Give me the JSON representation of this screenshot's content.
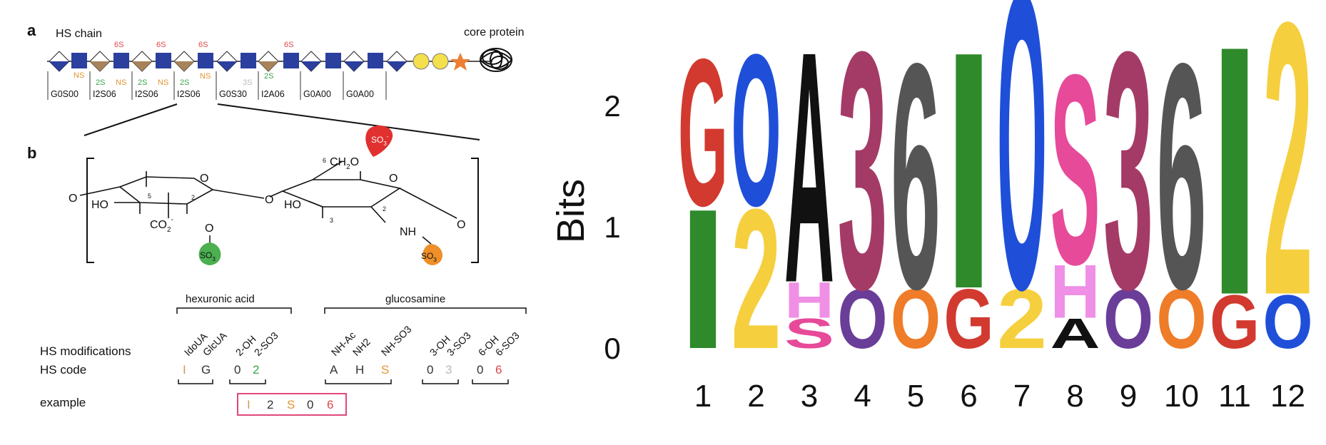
{
  "panel_a": {
    "label": "a",
    "chain_label": "HS chain",
    "core_label": "core protein",
    "top_marks": [
      "6S",
      "6S",
      "6S",
      "6S"
    ],
    "bottom_marks": [
      {
        "text": "NS",
        "color": "#e3952f"
      },
      {
        "text": "2S",
        "color": "#3aa54a"
      },
      {
        "text": "NS",
        "color": "#e3952f"
      },
      {
        "text": "2S",
        "color": "#3aa54a"
      },
      {
        "text": "NS",
        "color": "#e3952f"
      },
      {
        "text": "2S",
        "color": "#3aa54a"
      },
      {
        "text": "NS",
        "color": "#e3952f"
      },
      {
        "text": "3S",
        "color": "#b9b9b9"
      },
      {
        "text": "2S",
        "color": "#3aa54a"
      }
    ],
    "codes": [
      "G0S00",
      "I2S06",
      "I2S06",
      "I2S06",
      "G0S30",
      "I2A06",
      "G0A00",
      "G0A00"
    ]
  },
  "panel_b": {
    "label": "b",
    "atoms": {
      "o_link_left": "O",
      "o_ring1": "O",
      "o_glyco": "O",
      "o_ring2": "O",
      "o_link_right": "O",
      "ho1": "HO",
      "ho2": "HO",
      "co2": "CO",
      "co2_sup": "-",
      "co2_sub": "2",
      "o_2": "O",
      "ch2o": "CH",
      "ch2o_sub": "2",
      "ch2o_o": "O",
      "nh": "NH",
      "num_5": "5",
      "num_2a": "2",
      "num_6": "6",
      "num_3": "3",
      "num_2b": "2",
      "so3": "SO",
      "so3_sub": "3",
      "so3_sup": "-"
    },
    "group_hexuronic": "hexuronic acid",
    "group_glucosamine": "glucosamine",
    "row_modifications": "HS modifications",
    "row_code": "HS code",
    "row_example": "example",
    "modifications": [
      "IdoUA",
      "GlcUA",
      "2-OH",
      "2-SO3",
      "NH-Ac",
      "NH2",
      "NH-SO3",
      "3-OH",
      "3-SO3",
      "6-OH",
      "6-SO3"
    ],
    "codes": [
      {
        "text": "I",
        "color": "#c99a5b"
      },
      {
        "text": "G",
        "color": "#333333"
      },
      {
        "text": "0",
        "color": "#333333"
      },
      {
        "text": "2",
        "color": "#3aa54a"
      },
      {
        "text": "A",
        "color": "#333333"
      },
      {
        "text": "H",
        "color": "#333333"
      },
      {
        "text": "S",
        "color": "#e3952f"
      },
      {
        "text": "0",
        "color": "#333333"
      },
      {
        "text": "3",
        "color": "#b9b9b9"
      },
      {
        "text": "0",
        "color": "#333333"
      },
      {
        "text": "6",
        "color": "#e0484a"
      }
    ],
    "example": [
      {
        "text": "I",
        "color": "#c99a5b"
      },
      {
        "text": "2",
        "color": "#333333"
      },
      {
        "text": "S",
        "color": "#e3952f"
      },
      {
        "text": "0",
        "color": "#333333"
      },
      {
        "text": "6",
        "color": "#e0484a"
      }
    ],
    "example_border": "#e0487a"
  },
  "logo": {
    "ylabel": "Bits",
    "yticks": [
      "2",
      "1",
      "0"
    ],
    "ytick_values": [
      2,
      1,
      0
    ],
    "positions": [
      "1",
      "2",
      "3",
      "4",
      "5",
      "6",
      "7",
      "8",
      "9",
      "10",
      "11",
      "12"
    ],
    "columns": [
      [
        {
          "l": "I",
          "bits": 1.18,
          "c": "#2e8a2a"
        },
        {
          "l": "G",
          "bits": 1.24,
          "c": "#d23a2f"
        }
      ],
      [
        {
          "l": "2",
          "bits": 1.18,
          "c": "#f6cf3e"
        },
        {
          "l": "O",
          "bits": 1.28,
          "c": "#1f4fd9"
        }
      ],
      [
        {
          "l": "S",
          "bits": 0.25,
          "c": "#e64a99"
        },
        {
          "l": "H",
          "bits": 0.3,
          "c": "#ef8fe5"
        },
        {
          "l": "A",
          "bits": 1.95,
          "c": "#111111"
        }
      ],
      [
        {
          "l": "O",
          "bits": 0.5,
          "c": "#6a3d99"
        },
        {
          "l": "3",
          "bits": 2.0,
          "c": "#a43b66"
        }
      ],
      [
        {
          "l": "O",
          "bits": 0.5,
          "c": "#ef7c28"
        },
        {
          "l": "6",
          "bits": 1.9,
          "c": "#555555"
        }
      ],
      [
        {
          "l": "G",
          "bits": 0.5,
          "c": "#d23a2f"
        },
        {
          "l": "I",
          "bits": 2.0,
          "c": "#2e8a2a"
        }
      ],
      [
        {
          "l": "2",
          "bits": 0.5,
          "c": "#f6cf3e"
        },
        {
          "l": "O",
          "bits": 2.5,
          "c": "#1f4fd9"
        }
      ],
      [
        {
          "l": "A",
          "bits": 0.25,
          "c": "#111111"
        },
        {
          "l": "H",
          "bits": 0.45,
          "c": "#ef8fe5"
        },
        {
          "l": "S",
          "bits": 1.6,
          "c": "#e64a99"
        }
      ],
      [
        {
          "l": "O",
          "bits": 0.5,
          "c": "#6a3d99"
        },
        {
          "l": "3",
          "bits": 2.0,
          "c": "#a43b66"
        }
      ],
      [
        {
          "l": "O",
          "bits": 0.5,
          "c": "#ef7c28"
        },
        {
          "l": "6",
          "bits": 1.9,
          "c": "#555555"
        }
      ],
      [
        {
          "l": "G",
          "bits": 0.45,
          "c": "#d23a2f"
        },
        {
          "l": "I",
          "bits": 2.1,
          "c": "#2e8a2a"
        }
      ],
      [
        {
          "l": "O",
          "bits": 0.45,
          "c": "#1f4fd9"
        },
        {
          "l": "2",
          "bits": 2.3,
          "c": "#f6cf3e"
        }
      ]
    ]
  }
}
